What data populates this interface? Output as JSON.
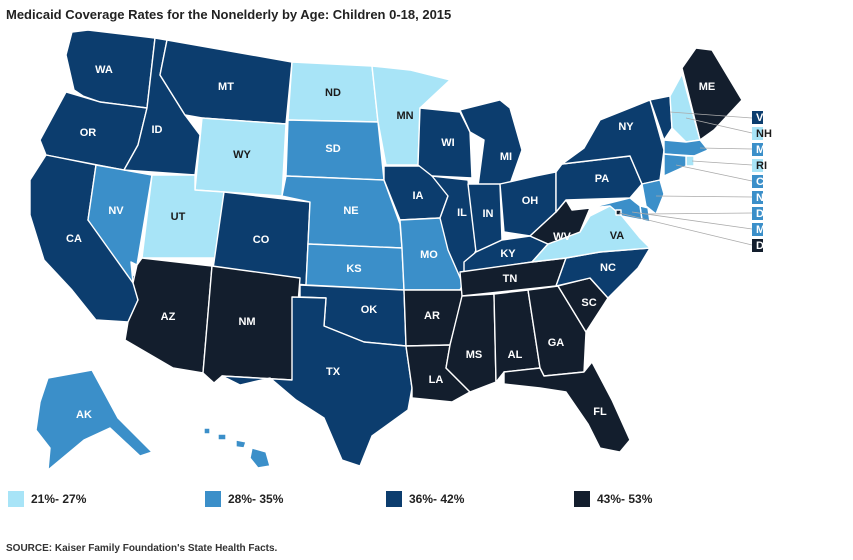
{
  "title": "Medicaid Coverage Rates for the Nonelderly by Age: Children 0-18, 2015",
  "source": "SOURCE: Kaiser Family Foundation's State Health Facts.",
  "colors": {
    "c1": "#a8e4f7",
    "c2": "#3b8fc9",
    "c3": "#0c3d6e",
    "c4": "#131e2d"
  },
  "legend": [
    {
      "label": "21%- 27%",
      "category": "c1"
    },
    {
      "label": "28%- 35%",
      "category": "c2"
    },
    {
      "label": "36%- 42%",
      "category": "c3"
    },
    {
      "label": "43%- 53%",
      "category": "c4"
    }
  ],
  "states": {
    "WA": "c3",
    "OR": "c3",
    "CA": "c3",
    "NV": "c2",
    "ID": "c3",
    "MT": "c3",
    "WY": "c1",
    "UT": "c1",
    "AZ": "c4",
    "CO": "c3",
    "NM": "c4",
    "ND": "c1",
    "SD": "c2",
    "NE": "c2",
    "KS": "c2",
    "OK": "c3",
    "TX": "c3",
    "MN": "c1",
    "IA": "c3",
    "MO": "c2",
    "AR": "c4",
    "LA": "c4",
    "WI": "c3",
    "IL": "c3",
    "MI": "c3",
    "IN": "c3",
    "OH": "c3",
    "KY": "c3",
    "TN": "c4",
    "MS": "c4",
    "AL": "c4",
    "GA": "c4",
    "FL": "c4",
    "SC": "c4",
    "NC": "c3",
    "VA": "c1",
    "WV": "c4",
    "PA": "c3",
    "NY": "c3",
    "ME": "c4",
    "AK": "c2",
    "HI": "c2",
    "VT": "c3",
    "NH": "c1",
    "MA": "c2",
    "RI": "c1",
    "CT": "c2",
    "NJ": "c2",
    "DE": "c2",
    "MD": "c2",
    "DC": "c4"
  },
  "small_state_labels": [
    "VT",
    "NH",
    "MA",
    "RI",
    "CT",
    "NJ",
    "DE",
    "MD",
    "DC"
  ]
}
